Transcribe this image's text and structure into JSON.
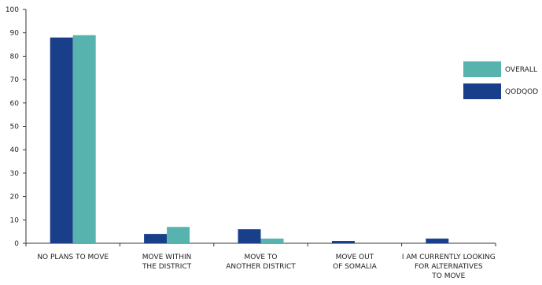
{
  "chart_data": {
    "type": "bar",
    "title": "",
    "xlabel": "",
    "ylabel": "",
    "ylim": [
      0,
      100
    ],
    "yticks": [
      0,
      10,
      20,
      30,
      40,
      50,
      60,
      70,
      80,
      90,
      100
    ],
    "grid": false,
    "legend_position": "right",
    "categories": [
      [
        "NO PLANS TO MOVE"
      ],
      [
        "MOVE WITHIN",
        "THE DISTRICT"
      ],
      [
        "MOVE TO",
        "ANOTHER DISTRICT"
      ],
      [
        "MOVE OUT",
        "OF SOMALIA"
      ],
      [
        "I AM CURRENTLY LOOKING",
        "FOR ALTERNATIVES",
        "TO MOVE"
      ]
    ],
    "series": [
      {
        "name": "QODQOD",
        "color": "#1a3f8a",
        "values": [
          88,
          4,
          6,
          1,
          2
        ]
      },
      {
        "name": "OVERALL",
        "color": "#57b3ad",
        "values": [
          89,
          7,
          2,
          0,
          0
        ]
      }
    ],
    "legend_order": [
      "OVERALL",
      "QODQOD"
    ]
  }
}
